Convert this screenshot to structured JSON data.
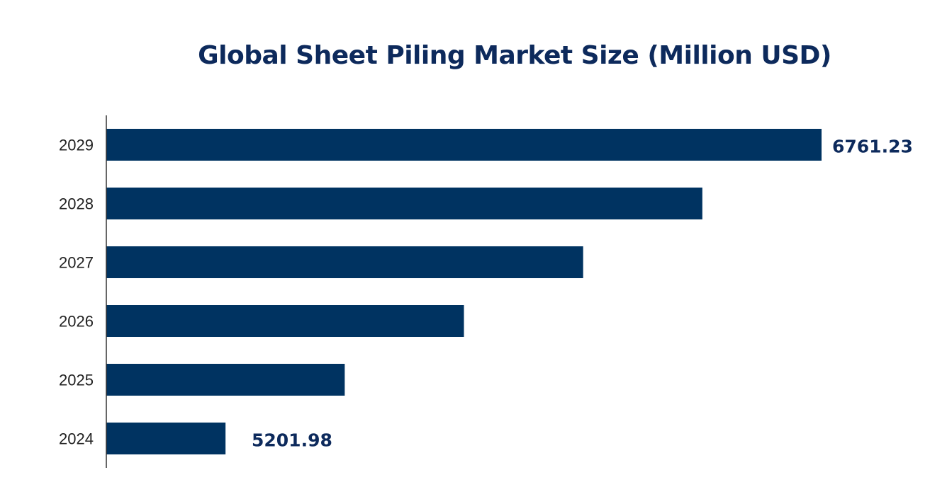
{
  "chart_data": {
    "type": "bar",
    "orientation": "horizontal",
    "title": "Global Sheet Piling Market Size (Million USD)",
    "xlabel": "",
    "ylabel": "",
    "categories": [
      "2029",
      "2028",
      "2027",
      "2026",
      "2025",
      "2024"
    ],
    "values": [
      6761.23,
      6449.38,
      6137.53,
      5825.68,
      5513.83,
      5201.98
    ],
    "data_labels": {
      "2029": "6761.23",
      "2024": "5201.98"
    },
    "xlim": [
      4890.13,
      6761.23
    ],
    "grid": false,
    "bar_color": "#003361",
    "label_color": "#0d2a5c"
  }
}
